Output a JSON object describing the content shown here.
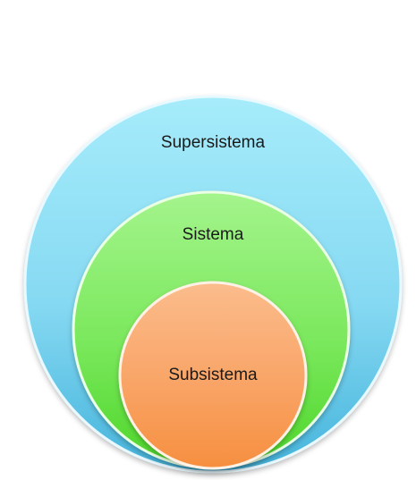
{
  "diagram": {
    "outer": {
      "label": "Supersistema",
      "color_top": "#a6ecfb",
      "color_bottom": "#45b4dc"
    },
    "middle": {
      "label": "Sistema",
      "color_top": "#a4f48c",
      "color_bottom": "#4ed62a"
    },
    "inner": {
      "label": "Subsistema",
      "color_top": "#fbbc8c",
      "color_bottom": "#f68f3f"
    }
  }
}
